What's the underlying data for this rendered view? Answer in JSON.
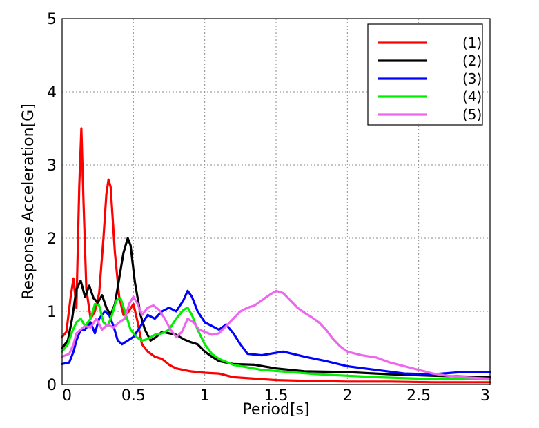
{
  "chart_data": {
    "type": "line",
    "title": "",
    "xlabel": "Period[s]",
    "ylabel": "Response Acceleration[G]",
    "xlim": [
      0,
      3
    ],
    "ylim": [
      0,
      5
    ],
    "x_ticks": [
      0,
      0.5,
      1,
      1.5,
      2,
      2.5,
      3
    ],
    "x_tick_labels": [
      "0",
      "0.5",
      "1",
      "1.5",
      "2",
      "2.5",
      "3"
    ],
    "y_ticks": [
      0,
      1,
      2,
      3,
      4,
      5
    ],
    "y_tick_labels": [
      "0",
      "1",
      "2",
      "3",
      "4",
      "5"
    ],
    "grid": true,
    "legend_position": "top-right",
    "series": [
      {
        "name": "(1)",
        "color": "#ff0000",
        "points": [
          [
            0,
            0.65
          ],
          [
            0.03,
            0.72
          ],
          [
            0.06,
            1.2
          ],
          [
            0.08,
            1.45
          ],
          [
            0.1,
            1.05
          ],
          [
            0.12,
            2.7
          ],
          [
            0.135,
            3.5
          ],
          [
            0.15,
            2.5
          ],
          [
            0.17,
            1.3
          ],
          [
            0.2,
            0.9
          ],
          [
            0.23,
            1.0
          ],
          [
            0.26,
            1.25
          ],
          [
            0.29,
            2.0
          ],
          [
            0.31,
            2.6
          ],
          [
            0.325,
            2.8
          ],
          [
            0.34,
            2.7
          ],
          [
            0.37,
            1.8
          ],
          [
            0.4,
            1.2
          ],
          [
            0.43,
            0.95
          ],
          [
            0.46,
            0.98
          ],
          [
            0.5,
            1.1
          ],
          [
            0.53,
            0.85
          ],
          [
            0.56,
            0.55
          ],
          [
            0.6,
            0.45
          ],
          [
            0.65,
            0.38
          ],
          [
            0.7,
            0.35
          ],
          [
            0.75,
            0.27
          ],
          [
            0.8,
            0.22
          ],
          [
            0.85,
            0.2
          ],
          [
            0.9,
            0.18
          ],
          [
            1.0,
            0.16
          ],
          [
            1.1,
            0.15
          ],
          [
            1.2,
            0.1
          ],
          [
            1.35,
            0.08
          ],
          [
            1.5,
            0.06
          ],
          [
            1.7,
            0.05
          ],
          [
            2.0,
            0.04
          ],
          [
            2.3,
            0.04
          ],
          [
            2.6,
            0.03
          ],
          [
            3.0,
            0.03
          ]
        ]
      },
      {
        "name": "(2)",
        "color": "#000000",
        "points": [
          [
            0,
            0.5
          ],
          [
            0.04,
            0.6
          ],
          [
            0.07,
            0.9
          ],
          [
            0.1,
            1.3
          ],
          [
            0.13,
            1.42
          ],
          [
            0.16,
            1.2
          ],
          [
            0.19,
            1.35
          ],
          [
            0.22,
            1.18
          ],
          [
            0.25,
            1.12
          ],
          [
            0.28,
            1.22
          ],
          [
            0.31,
            1.05
          ],
          [
            0.34,
            0.95
          ],
          [
            0.37,
            1.1
          ],
          [
            0.4,
            1.45
          ],
          [
            0.43,
            1.8
          ],
          [
            0.46,
            2.0
          ],
          [
            0.48,
            1.9
          ],
          [
            0.51,
            1.4
          ],
          [
            0.55,
            0.95
          ],
          [
            0.58,
            0.75
          ],
          [
            0.62,
            0.6
          ],
          [
            0.66,
            0.65
          ],
          [
            0.7,
            0.72
          ],
          [
            0.75,
            0.7
          ],
          [
            0.8,
            0.68
          ],
          [
            0.85,
            0.62
          ],
          [
            0.9,
            0.58
          ],
          [
            0.95,
            0.55
          ],
          [
            1.0,
            0.45
          ],
          [
            1.05,
            0.38
          ],
          [
            1.1,
            0.32
          ],
          [
            1.2,
            0.28
          ],
          [
            1.35,
            0.27
          ],
          [
            1.5,
            0.22
          ],
          [
            1.7,
            0.18
          ],
          [
            2.0,
            0.17
          ],
          [
            2.3,
            0.14
          ],
          [
            2.6,
            0.12
          ],
          [
            3.0,
            0.1
          ]
        ]
      },
      {
        "name": "(3)",
        "color": "#0000ff",
        "points": [
          [
            0,
            0.28
          ],
          [
            0.05,
            0.3
          ],
          [
            0.08,
            0.45
          ],
          [
            0.1,
            0.6
          ],
          [
            0.13,
            0.75
          ],
          [
            0.16,
            0.75
          ],
          [
            0.2,
            0.85
          ],
          [
            0.23,
            0.7
          ],
          [
            0.26,
            0.9
          ],
          [
            0.3,
            1.0
          ],
          [
            0.33,
            0.95
          ],
          [
            0.36,
            0.8
          ],
          [
            0.39,
            0.6
          ],
          [
            0.42,
            0.55
          ],
          [
            0.46,
            0.6
          ],
          [
            0.5,
            0.65
          ],
          [
            0.55,
            0.8
          ],
          [
            0.6,
            0.95
          ],
          [
            0.65,
            0.9
          ],
          [
            0.7,
            1.0
          ],
          [
            0.75,
            1.05
          ],
          [
            0.8,
            1.0
          ],
          [
            0.85,
            1.15
          ],
          [
            0.88,
            1.28
          ],
          [
            0.91,
            1.2
          ],
          [
            0.95,
            1.0
          ],
          [
            1.0,
            0.85
          ],
          [
            1.05,
            0.8
          ],
          [
            1.1,
            0.75
          ],
          [
            1.15,
            0.82
          ],
          [
            1.2,
            0.7
          ],
          [
            1.25,
            0.55
          ],
          [
            1.3,
            0.42
          ],
          [
            1.4,
            0.4
          ],
          [
            1.55,
            0.45
          ],
          [
            1.7,
            0.38
          ],
          [
            1.85,
            0.32
          ],
          [
            2.0,
            0.25
          ],
          [
            2.2,
            0.2
          ],
          [
            2.4,
            0.15
          ],
          [
            2.6,
            0.14
          ],
          [
            2.8,
            0.17
          ],
          [
            3.0,
            0.17
          ]
        ]
      },
      {
        "name": "(4)",
        "color": "#00ee00",
        "points": [
          [
            0,
            0.45
          ],
          [
            0.04,
            0.55
          ],
          [
            0.07,
            0.72
          ],
          [
            0.1,
            0.85
          ],
          [
            0.13,
            0.9
          ],
          [
            0.16,
            0.8
          ],
          [
            0.2,
            0.9
          ],
          [
            0.23,
            1.1
          ],
          [
            0.26,
            1.08
          ],
          [
            0.29,
            0.85
          ],
          [
            0.32,
            0.8
          ],
          [
            0.35,
            0.95
          ],
          [
            0.38,
            1.15
          ],
          [
            0.41,
            1.18
          ],
          [
            0.44,
            1.0
          ],
          [
            0.48,
            0.75
          ],
          [
            0.52,
            0.65
          ],
          [
            0.56,
            0.6
          ],
          [
            0.6,
            0.62
          ],
          [
            0.65,
            0.68
          ],
          [
            0.7,
            0.7
          ],
          [
            0.75,
            0.75
          ],
          [
            0.8,
            0.9
          ],
          [
            0.85,
            1.02
          ],
          [
            0.88,
            1.05
          ],
          [
            0.91,
            0.95
          ],
          [
            0.95,
            0.75
          ],
          [
            1.0,
            0.55
          ],
          [
            1.05,
            0.42
          ],
          [
            1.1,
            0.35
          ],
          [
            1.2,
            0.27
          ],
          [
            1.4,
            0.2
          ],
          [
            1.6,
            0.17
          ],
          [
            1.8,
            0.14
          ],
          [
            2.0,
            0.12
          ],
          [
            2.2,
            0.1
          ],
          [
            2.5,
            0.08
          ],
          [
            3.0,
            0.07
          ]
        ]
      },
      {
        "name": "(5)",
        "color": "#ee66ee",
        "points": [
          [
            0,
            0.38
          ],
          [
            0.05,
            0.42
          ],
          [
            0.08,
            0.55
          ],
          [
            0.1,
            0.7
          ],
          [
            0.13,
            0.75
          ],
          [
            0.16,
            0.8
          ],
          [
            0.2,
            0.78
          ],
          [
            0.24,
            0.9
          ],
          [
            0.28,
            0.75
          ],
          [
            0.32,
            0.82
          ],
          [
            0.36,
            0.78
          ],
          [
            0.4,
            0.85
          ],
          [
            0.44,
            0.9
          ],
          [
            0.47,
            1.1
          ],
          [
            0.5,
            1.2
          ],
          [
            0.53,
            1.1
          ],
          [
            0.56,
            0.95
          ],
          [
            0.6,
            1.05
          ],
          [
            0.64,
            1.08
          ],
          [
            0.68,
            1.02
          ],
          [
            0.72,
            0.9
          ],
          [
            0.76,
            0.75
          ],
          [
            0.8,
            0.65
          ],
          [
            0.84,
            0.72
          ],
          [
            0.88,
            0.9
          ],
          [
            0.92,
            0.85
          ],
          [
            0.96,
            0.75
          ],
          [
            1.0,
            0.72
          ],
          [
            1.05,
            0.68
          ],
          [
            1.1,
            0.7
          ],
          [
            1.15,
            0.8
          ],
          [
            1.2,
            0.9
          ],
          [
            1.25,
            1.0
          ],
          [
            1.3,
            1.05
          ],
          [
            1.35,
            1.08
          ],
          [
            1.4,
            1.15
          ],
          [
            1.45,
            1.22
          ],
          [
            1.5,
            1.28
          ],
          [
            1.55,
            1.25
          ],
          [
            1.6,
            1.15
          ],
          [
            1.65,
            1.05
          ],
          [
            1.7,
            0.98
          ],
          [
            1.75,
            0.92
          ],
          [
            1.8,
            0.85
          ],
          [
            1.85,
            0.75
          ],
          [
            1.9,
            0.62
          ],
          [
            1.95,
            0.52
          ],
          [
            2.0,
            0.45
          ],
          [
            2.1,
            0.4
          ],
          [
            2.2,
            0.37
          ],
          [
            2.3,
            0.3
          ],
          [
            2.4,
            0.25
          ],
          [
            2.5,
            0.2
          ],
          [
            2.6,
            0.15
          ],
          [
            2.7,
            0.12
          ],
          [
            2.8,
            0.1
          ],
          [
            2.9,
            0.09
          ],
          [
            3.0,
            0.08
          ]
        ]
      }
    ]
  }
}
